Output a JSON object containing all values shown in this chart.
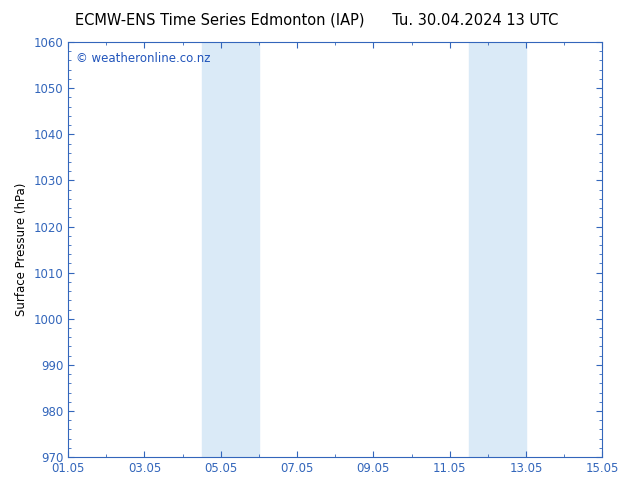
{
  "title_left": "ECMW-ENS Time Series Edmonton (IAP)",
  "title_right": "Tu. 30.04.2024 13 UTC",
  "ylabel": "Surface Pressure (hPa)",
  "ylim": [
    970,
    1060
  ],
  "yticks": [
    970,
    980,
    990,
    1000,
    1010,
    1020,
    1030,
    1040,
    1050,
    1060
  ],
  "xlim_start": 0,
  "xlim_end": 14,
  "xtick_labels": [
    "01.05",
    "03.05",
    "05.05",
    "07.05",
    "09.05",
    "11.05",
    "13.05",
    "15.05"
  ],
  "xtick_positions": [
    0,
    2,
    4,
    6,
    8,
    10,
    12,
    14
  ],
  "shaded_bands": [
    {
      "x_start": 3.5,
      "x_end": 5.0
    },
    {
      "x_start": 10.5,
      "x_end": 12.0
    }
  ],
  "shaded_color": "#daeaf7",
  "background_color": "#ffffff",
  "plot_bg_color": "#ffffff",
  "spine_color": "#3366bb",
  "tick_color": "#3366bb",
  "watermark_text": "© weatheronline.co.nz",
  "watermark_color": "#2255bb",
  "title_fontsize": 10.5,
  "axis_label_fontsize": 8.5,
  "tick_fontsize": 8.5,
  "watermark_fontsize": 8.5,
  "title_color": "#000000",
  "ylabel_color": "#000000"
}
